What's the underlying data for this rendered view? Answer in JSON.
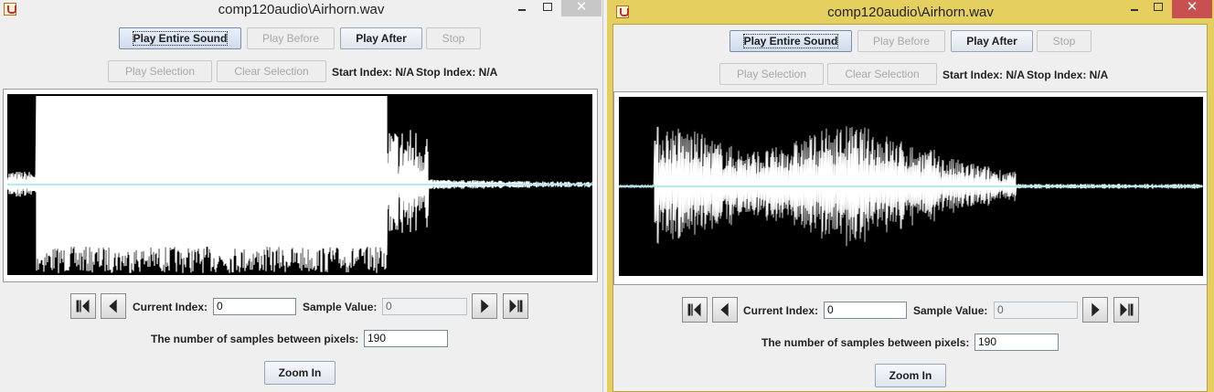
{
  "windows": [
    {
      "title": "comp120audio\\Airhorn.wav",
      "buttons": {
        "play_entire": "Play Entire Sound",
        "play_before": "Play Before",
        "play_after": "Play After",
        "stop": "Stop",
        "play_selection": "Play Selection",
        "clear_selection": "Clear Selection",
        "zoom_in": "Zoom In"
      },
      "start_index_label": "Start Index: N/A",
      "stop_index_label": "Stop Index: N/A",
      "current_index_label": "Current Index:",
      "current_index_value": "0",
      "sample_value_label": "Sample Value:",
      "sample_value": "0",
      "samples_between_label": "The number of samples between pixels:",
      "samples_between_value": "190",
      "waveform_view": "clipped"
    },
    {
      "title": "comp120audio\\Airhorn.wav",
      "buttons": {
        "play_entire": "Play Entire Sound",
        "play_before": "Play Before",
        "play_after": "Play After",
        "stop": "Stop",
        "play_selection": "Play Selection",
        "clear_selection": "Clear Selection",
        "zoom_in": "Zoom In"
      },
      "start_index_label": "Start Index: N/A",
      "stop_index_label": "Stop Index: N/A",
      "current_index_label": "Current Index:",
      "current_index_value": "0",
      "sample_value_label": "Sample Value:",
      "sample_value": "0",
      "samples_between_label": "The number of samples between pixels:",
      "samples_between_value": "190",
      "waveform_view": "normal"
    }
  ],
  "colors": {
    "waveform_bg": "#000000",
    "waveform_line": "#ffffff",
    "zero_line": "#66d9e8",
    "active_title_frame": "#e5cf5e"
  },
  "icons": {
    "first": "skip-to-start-icon",
    "prev": "step-back-icon",
    "next": "step-forward-icon",
    "last": "skip-to-end-icon"
  }
}
